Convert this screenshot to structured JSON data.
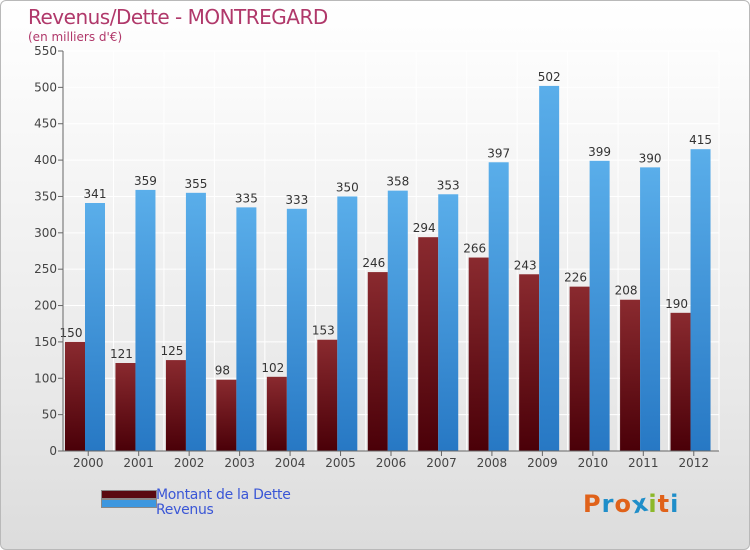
{
  "header": {
    "title": "Revenus/Dette - MONTREGARD",
    "subtitle": "(en milliers d'€)"
  },
  "chart_data": {
    "type": "bar",
    "title": "Revenus/Dette - MONTREGARD",
    "subtitle": "(en milliers d'€)",
    "categories": [
      "2000",
      "2001",
      "2002",
      "2003",
      "2004",
      "2005",
      "2006",
      "2007",
      "2008",
      "2009",
      "2010",
      "2011",
      "2012"
    ],
    "series": [
      {
        "name": "Montant de la Dette",
        "color": "#7a1a1f",
        "values": [
          150,
          121,
          125,
          98,
          102,
          153,
          246,
          294,
          266,
          243,
          226,
          208,
          190
        ]
      },
      {
        "name": "Revenus",
        "color": "#3d97df",
        "values": [
          341,
          359,
          355,
          335,
          333,
          350,
          358,
          353,
          397,
          502,
          399,
          390,
          415
        ]
      }
    ],
    "yticks": [
      0,
      50,
      100,
      150,
      200,
      250,
      300,
      350,
      400,
      450,
      500,
      550
    ],
    "ylim": [
      0,
      550
    ],
    "grid": true,
    "legend_position": "bottom-left"
  },
  "legend": {
    "items": [
      {
        "label": "Montant de la Dette",
        "color": "#6b0f14"
      },
      {
        "label": "Revenus",
        "color": "#3d97df"
      }
    ]
  },
  "logo": {
    "letters": [
      "P",
      "r",
      "o",
      "x",
      "i",
      "t",
      "i"
    ],
    "colors": [
      "#e0621a",
      "#1f8ec9",
      "#e0621a",
      "#1f8ec9",
      "#8cb82a",
      "#e0621a",
      "#1f8ec9"
    ]
  }
}
